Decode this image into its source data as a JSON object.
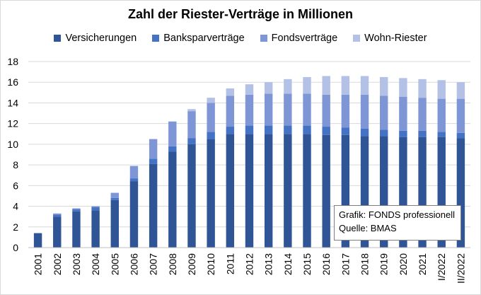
{
  "chart_data": {
    "type": "bar",
    "stacked": true,
    "title": "Zahl der Riester-Verträge in Millionen",
    "categories": [
      "2001",
      "2002",
      "2003",
      "2004",
      "2005",
      "2006",
      "2007",
      "2008",
      "2009",
      "2010",
      "2011",
      "2012",
      "2013",
      "2014",
      "2015",
      "2016",
      "2017",
      "2018",
      "2019",
      "2020",
      "2021",
      "I/2022",
      "II/2022"
    ],
    "series": [
      {
        "name": "Versicherungen",
        "color": "#2f5597",
        "values": [
          1.4,
          3.0,
          3.5,
          3.6,
          4.6,
          6.4,
          8.1,
          9.3,
          10.0,
          10.5,
          11.0,
          11.0,
          11.0,
          11.0,
          11.0,
          10.9,
          10.9,
          10.8,
          10.8,
          10.7,
          10.7,
          10.7,
          10.6
        ]
      },
      {
        "name": "Banksparverträge",
        "color": "#4472c4",
        "values": [
          0.0,
          0.2,
          0.2,
          0.3,
          0.2,
          0.3,
          0.5,
          0.5,
          0.6,
          0.7,
          0.7,
          0.8,
          0.8,
          0.8,
          0.8,
          0.8,
          0.7,
          0.7,
          0.6,
          0.6,
          0.6,
          0.5,
          0.5
        ]
      },
      {
        "name": "Fondsverträge",
        "color": "#7f96d6",
        "values": [
          0.0,
          0.1,
          0.1,
          0.1,
          0.5,
          1.2,
          1.9,
          2.4,
          2.6,
          2.8,
          3.0,
          3.0,
          3.1,
          3.1,
          3.1,
          3.1,
          3.2,
          3.3,
          3.3,
          3.3,
          3.2,
          3.2,
          3.3
        ]
      },
      {
        "name": "Wohn-Riester",
        "color": "#b4c1e6",
        "values": [
          0.0,
          0.0,
          0.0,
          0.0,
          0.0,
          0.0,
          0.0,
          0.0,
          0.2,
          0.5,
          0.7,
          1.0,
          1.1,
          1.4,
          1.6,
          1.8,
          1.8,
          1.8,
          1.8,
          1.8,
          1.8,
          1.8,
          1.6
        ]
      }
    ],
    "ylim": [
      0,
      18
    ],
    "yticks": [
      0,
      2,
      4,
      6,
      8,
      10,
      12,
      14,
      16,
      18
    ],
    "grid": true,
    "legend_position": "top"
  },
  "source_box": {
    "line1": "Grafik: FONDS professionell",
    "line2": "Quelle: BMAS"
  }
}
